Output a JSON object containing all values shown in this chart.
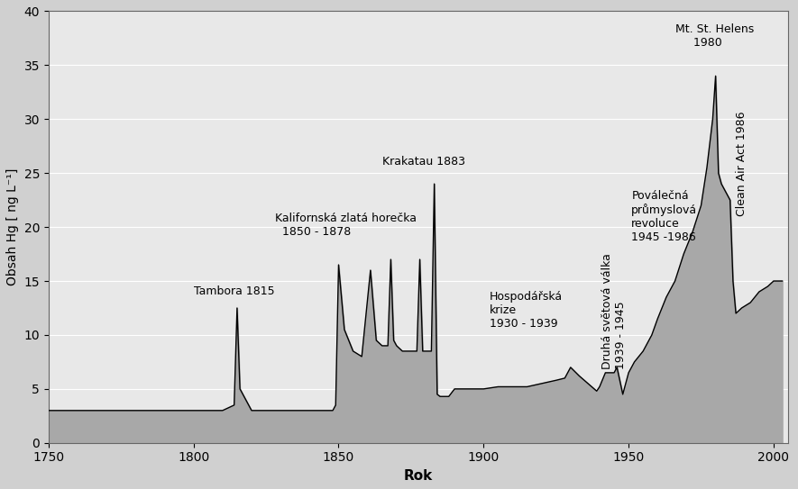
{
  "xlabel": "Rok",
  "ylabel": "Obsah Hg [ ng L⁻¹]",
  "xlim": [
    1750,
    2005
  ],
  "ylim": [
    0,
    40
  ],
  "xticks": [
    1750,
    1800,
    1850,
    1900,
    1950,
    2000
  ],
  "yticks": [
    0,
    5,
    10,
    15,
    20,
    25,
    30,
    35,
    40
  ],
  "plot_bg_color": "#e8e8e8",
  "fig_bg_color": "#d0d0d0",
  "fill_color": "#c0c0c0",
  "fill_color2": "#a8a8a8",
  "line_color": "#000000",
  "x": [
    1750,
    1758,
    1765,
    1772,
    1780,
    1788,
    1796,
    1804,
    1810,
    1814,
    1815,
    1816,
    1820,
    1828,
    1835,
    1840,
    1845,
    1848,
    1849,
    1850,
    1852,
    1855,
    1858,
    1861,
    1863,
    1865,
    1867,
    1868,
    1869,
    1870,
    1872,
    1875,
    1877,
    1878,
    1879,
    1880,
    1881,
    1882,
    1883,
    1884,
    1885,
    1886,
    1887,
    1888,
    1890,
    1895,
    1900,
    1905,
    1910,
    1915,
    1920,
    1925,
    1928,
    1930,
    1933,
    1936,
    1939,
    1940,
    1942,
    1945,
    1946,
    1948,
    1950,
    1952,
    1955,
    1958,
    1960,
    1963,
    1966,
    1969,
    1972,
    1975,
    1977,
    1979,
    1980,
    1981,
    1982,
    1983,
    1985,
    1986,
    1987,
    1989,
    1992,
    1995,
    1998,
    2000,
    2003
  ],
  "y": [
    3.0,
    3.0,
    3.0,
    3.0,
    3.0,
    3.0,
    3.0,
    3.0,
    3.0,
    3.5,
    12.5,
    5.0,
    3.0,
    3.0,
    3.0,
    3.0,
    3.0,
    3.0,
    3.5,
    16.5,
    10.5,
    8.5,
    8.0,
    16.0,
    9.5,
    9.0,
    9.0,
    17.0,
    9.5,
    9.0,
    8.5,
    8.5,
    8.5,
    17.0,
    8.5,
    8.5,
    8.5,
    8.5,
    24.0,
    4.5,
    4.3,
    4.3,
    4.3,
    4.3,
    5.0,
    5.0,
    5.0,
    5.2,
    5.2,
    5.2,
    5.5,
    5.8,
    6.0,
    7.0,
    6.2,
    5.5,
    4.8,
    5.2,
    6.5,
    6.5,
    7.0,
    4.5,
    6.5,
    7.5,
    8.5,
    10.0,
    11.5,
    13.5,
    15.0,
    17.5,
    19.5,
    22.0,
    25.5,
    30.0,
    34.0,
    25.0,
    24.0,
    23.5,
    22.5,
    15.0,
    12.0,
    12.5,
    13.0,
    14.0,
    14.5,
    15.0,
    15.0
  ]
}
